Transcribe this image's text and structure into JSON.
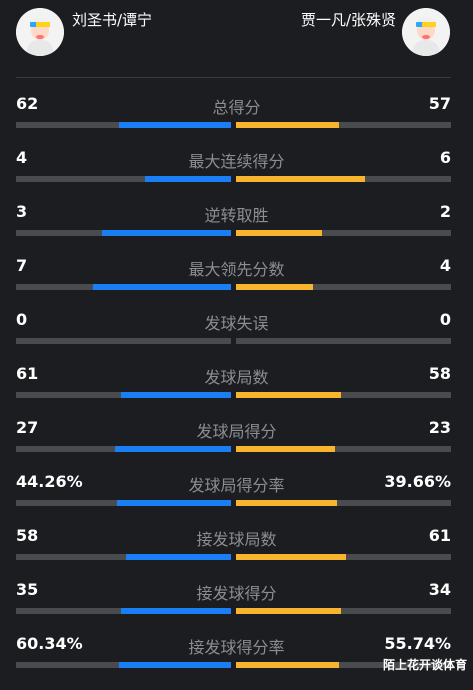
{
  "header": {
    "left_player": "刘圣书/谭宁",
    "right_player": "贾一凡/张殊贤"
  },
  "colors": {
    "left": "#1a7ef5",
    "right": "#f7b42c",
    "track": "#4a4b4f"
  },
  "stats": [
    {
      "label": "总得分",
      "left": "62",
      "right": "57",
      "left_share": 0.52,
      "right_share": 0.48
    },
    {
      "label": "最大连续得分",
      "left": "4",
      "right": "6",
      "left_share": 0.4,
      "right_share": 0.6
    },
    {
      "label": "逆转取胜",
      "left": "3",
      "right": "2",
      "left_share": 0.6,
      "right_share": 0.4
    },
    {
      "label": "最大领先分数",
      "left": "7",
      "right": "4",
      "left_share": 0.64,
      "right_share": 0.36
    },
    {
      "label": "发球失误",
      "left": "0",
      "right": "0",
      "left_share": 0,
      "right_share": 0
    },
    {
      "label": "发球局数",
      "left": "61",
      "right": "58",
      "left_share": 0.51,
      "right_share": 0.49
    },
    {
      "label": "发球局得分",
      "left": "27",
      "right": "23",
      "left_share": 0.54,
      "right_share": 0.46
    },
    {
      "label": "发球局得分率",
      "left": "44.26%",
      "right": "39.66%",
      "left_share": 0.53,
      "right_share": 0.47
    },
    {
      "label": "接发球局数",
      "left": "58",
      "right": "61",
      "left_share": 0.49,
      "right_share": 0.51
    },
    {
      "label": "接发球得分",
      "left": "35",
      "right": "34",
      "left_share": 0.51,
      "right_share": 0.49
    },
    {
      "label": "接发球得分率",
      "left": "60.34%",
      "right": "55.74%",
      "left_share": 0.52,
      "right_share": 0.48
    }
  ],
  "watermark": "陌上花开谈体育"
}
